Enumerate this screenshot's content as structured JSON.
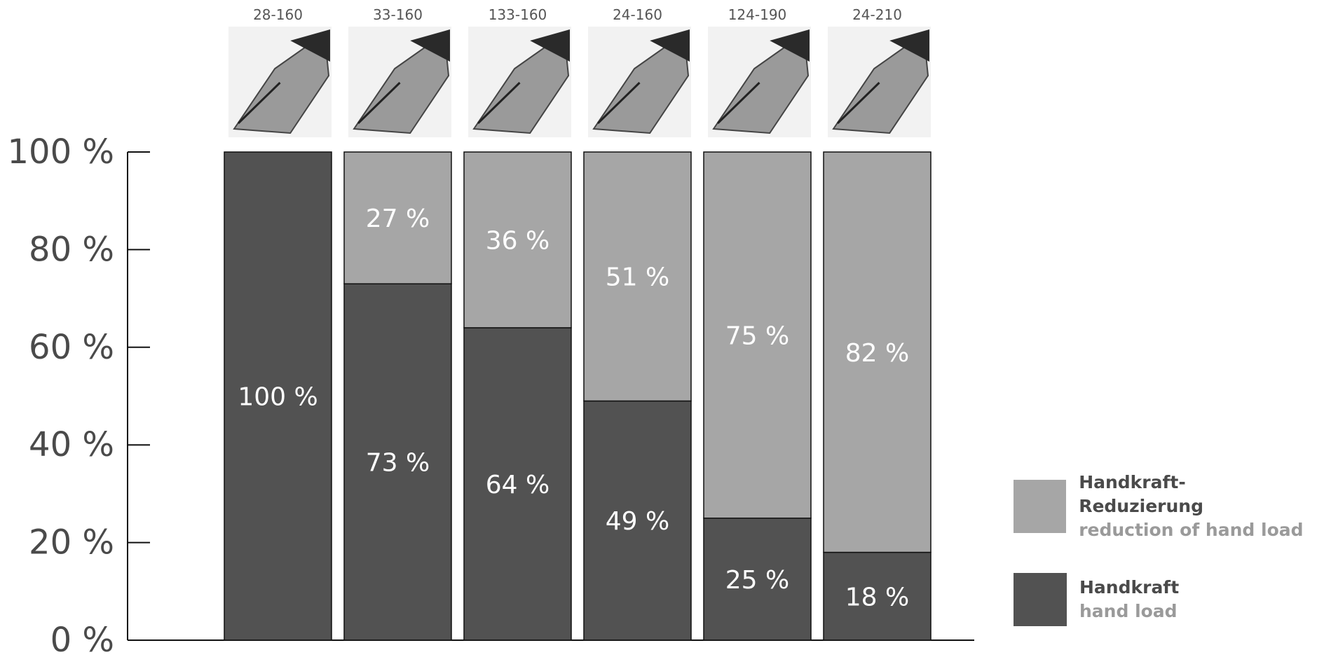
{
  "chart_data": {
    "type": "bar",
    "stacked": true,
    "categories": [
      "28-160",
      "33-160",
      "133-160",
      "24-160",
      "124-190",
      "24-210"
    ],
    "series": [
      {
        "name": "Handkraft / hand load",
        "color": "#525252",
        "values": [
          100,
          73,
          64,
          49,
          25,
          18
        ]
      },
      {
        "name": "Handkraft-Reduzierung / reduction of hand load",
        "color": "#a6a6a6",
        "values": [
          0,
          27,
          36,
          51,
          75,
          82
        ]
      }
    ],
    "ylim": [
      0,
      100
    ],
    "yticks": [
      0,
      20,
      40,
      60,
      80,
      100
    ],
    "ytick_labels": [
      "0 %",
      "20 %",
      "40 %",
      "60 %",
      "80 %",
      "100 %"
    ],
    "data_labels": {
      "hand_load": [
        "100 %",
        "73 %",
        "64 %",
        "49 %",
        "25 %",
        "18 %"
      ],
      "reduction": [
        "",
        "27 %",
        "36 %",
        "51 %",
        "75 %",
        "82 %"
      ]
    },
    "product_images": [
      "diagonal-cutter-28-160",
      "diagonal-cutter-33-160",
      "diagonal-cutter-133-160",
      "lever-cutter-24-160",
      "bolt-cutter-124-190",
      "bolt-cutter-24-210"
    ],
    "legend_placement": "bottom-right",
    "grid": false
  },
  "legend": {
    "items": [
      {
        "de": "Handkraft-Reduzierung",
        "en": "reduction of hand load",
        "color": "#a6a6a6"
      },
      {
        "de": "Handkraft",
        "en": "hand load",
        "color": "#525252"
      }
    ]
  }
}
